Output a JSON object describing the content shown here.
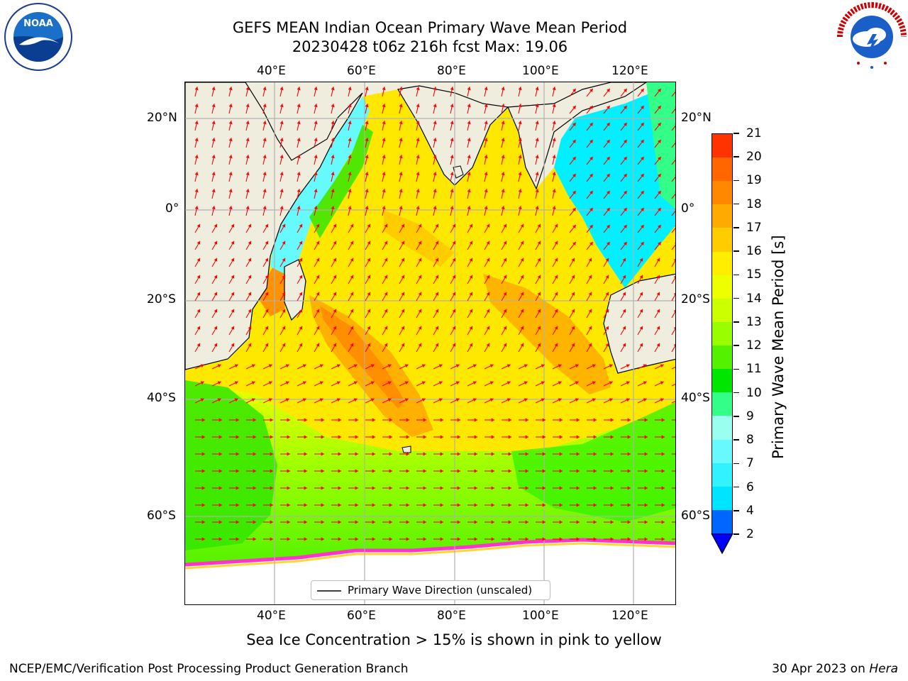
{
  "header": {
    "title_line1": "GEFS MEAN Indian Ocean Primary Wave Mean Period",
    "title_line2": "20230428 t06z 216h fcst   Max: 19.06"
  },
  "map": {
    "lon_ticks": [
      "40°E",
      "60°E",
      "80°E",
      "100°E",
      "120°E"
    ],
    "lat_ticks": [
      "20°N",
      "0°",
      "20°S",
      "40°S",
      "60°S"
    ],
    "legend_label": "Primary Wave Direction (unscaled)",
    "colors": {
      "land": "#efeede",
      "arrow": "#ff0000",
      "grid": "#b0b0b0"
    }
  },
  "colorbar": {
    "label": "Primary Wave Mean Period [s]",
    "ticks": [
      "2",
      "4",
      "6",
      "7",
      "8",
      "9",
      "10",
      "11",
      "12",
      "13",
      "14",
      "15",
      "16",
      "17",
      "18",
      "19",
      "20",
      "21"
    ],
    "colors": [
      "#0066ff",
      "#00e5ff",
      "#33f2ff",
      "#66faff",
      "#99ffee",
      "#33ff88",
      "#00e600",
      "#55f200",
      "#99ff00",
      "#ccff00",
      "#eeff00",
      "#ffee00",
      "#ffcc00",
      "#ffaa00",
      "#ff8800",
      "#ff6600",
      "#ff3300",
      "#ff0000"
    ],
    "extend_color": "#0000ff"
  },
  "footer": {
    "sea_ice_note": "Sea Ice Concentration > 15% is shown in pink to yellow",
    "branch": "NCEP/EMC/Verification Post Processing Product Generation Branch",
    "date": "30 Apr 2023 on",
    "machine": "Hera"
  },
  "logos": {
    "noaa_text": "NOAA",
    "nws_text": "NATIONAL WEATHER SERVICE"
  }
}
